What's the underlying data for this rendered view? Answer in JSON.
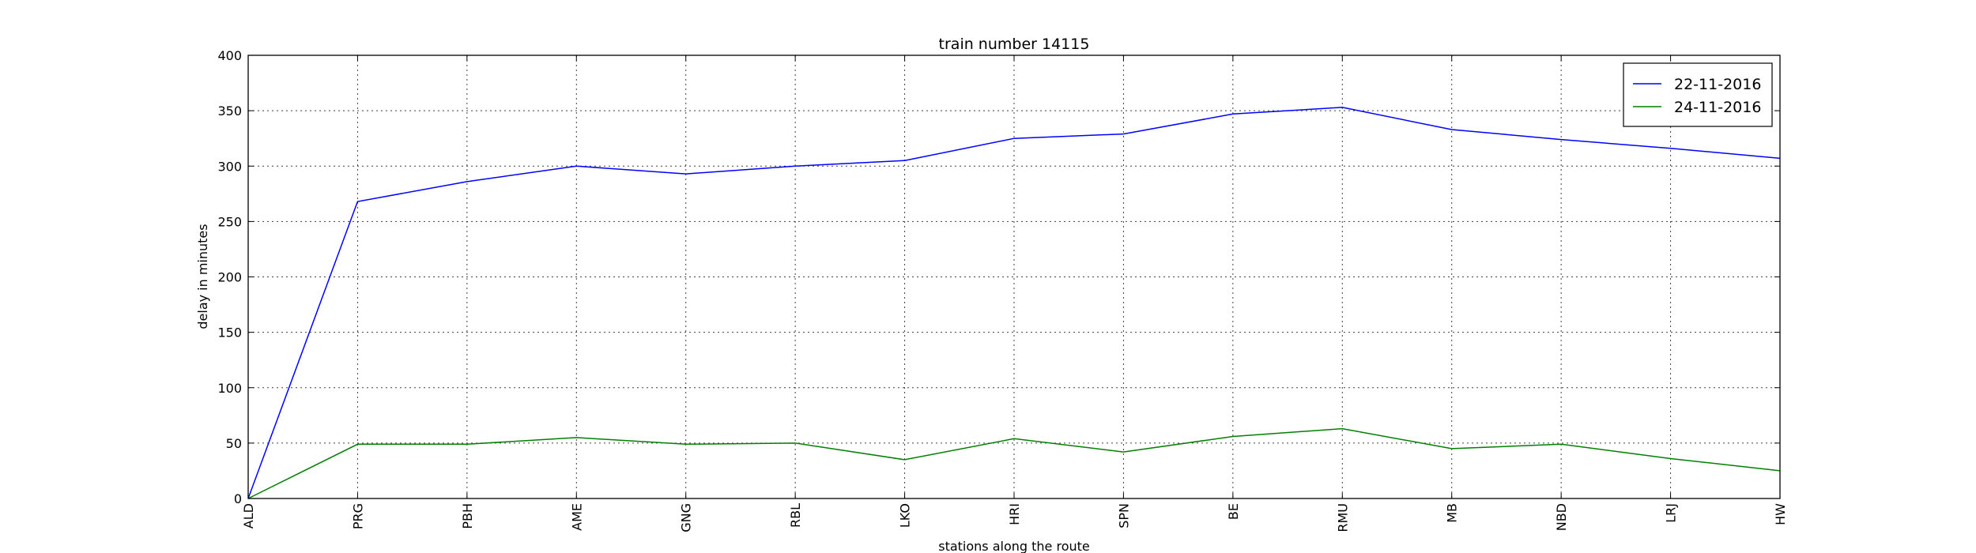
{
  "chart_data": {
    "type": "line",
    "title": "train number 14115",
    "xlabel": "stations along the route",
    "ylabel": "delay in minutes",
    "categories": [
      "ALD",
      "PRG",
      "PBH",
      "AME",
      "GNG",
      "RBL",
      "LKO",
      "HRI",
      "SPN",
      "BE",
      "RMU",
      "MB",
      "NBD",
      "LRJ",
      "HW"
    ],
    "ylim": [
      0,
      400
    ],
    "yticks": [
      0,
      50,
      100,
      150,
      200,
      250,
      300,
      350,
      400
    ],
    "grid": true,
    "legend_position": "top-right",
    "series": [
      {
        "name": "22-11-2016",
        "color": "#0000ff",
        "values": [
          0,
          268,
          286,
          300,
          293,
          300,
          305,
          325,
          329,
          347,
          353,
          333,
          324,
          316,
          307
        ]
      },
      {
        "name": "24-11-2016",
        "color": "#008000",
        "values": [
          0,
          49,
          49,
          55,
          49,
          50,
          35,
          54,
          42,
          56,
          63,
          45,
          49,
          36,
          25
        ]
      }
    ]
  }
}
